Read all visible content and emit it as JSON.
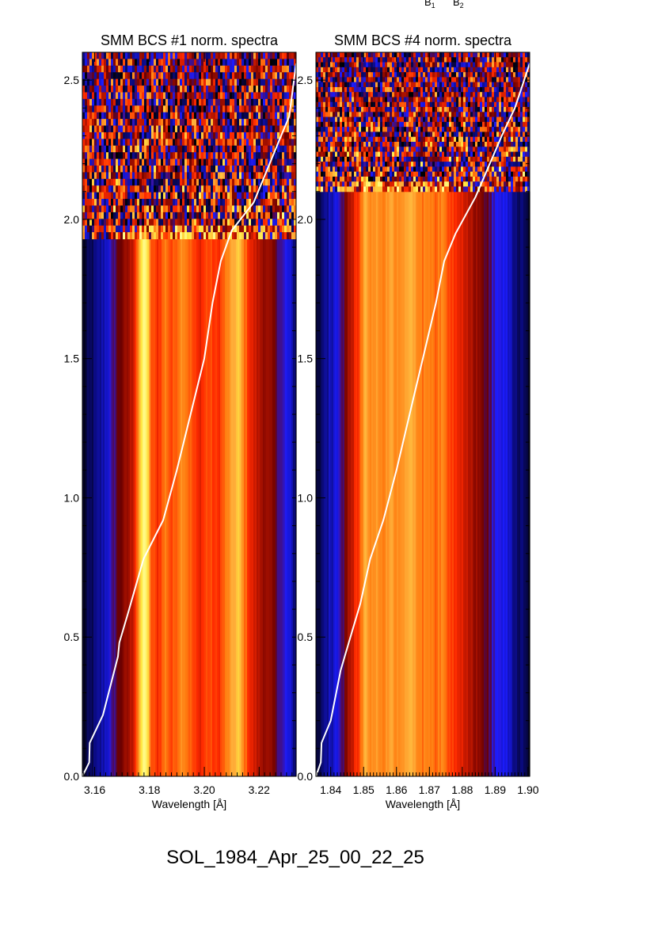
{
  "header": {
    "b1": "B",
    "b1_sub": "1",
    "b2": "B",
    "b2_sub": "2"
  },
  "footer": {
    "event_label": "SOL_1984_Apr_25_00_22_25"
  },
  "colors": {
    "scale": [
      "#000000",
      "#0a0a7a",
      "#1c1cff",
      "#6a0000",
      "#b41400",
      "#ff2a00",
      "#ff7d10",
      "#ffb03a",
      "#ffe640",
      "#ffff9a"
    ],
    "curve": "#ffffff",
    "axis": "#000000"
  },
  "chart_data": [
    {
      "type": "heatmap",
      "title": "SMM BCS #1 norm. spectra",
      "xlabel": "Wavelength [Å]",
      "ylabel": "",
      "xlim": [
        3.1555,
        3.2335
      ],
      "ylim": [
        0.0,
        2.6
      ],
      "x_ticks": [
        3.16,
        3.18,
        3.2,
        3.22
      ],
      "x_tick_labels": [
        "3.16",
        "3.18",
        "3.20",
        "3.22"
      ],
      "y_ticks": [
        0.0,
        0.5,
        1.0,
        1.5,
        2.0,
        2.5
      ],
      "y_tick_labels": [
        "0.0",
        "0.5",
        "1.0",
        "1.5",
        "2.0",
        "2.5"
      ],
      "noise_above_y": 1.93,
      "band_profile": [
        [
          3.1555,
          0.02
        ],
        [
          3.1575,
          0.06
        ],
        [
          3.16,
          0.1
        ],
        [
          3.1625,
          0.14
        ],
        [
          3.165,
          0.2
        ],
        [
          3.1675,
          0.3
        ],
        [
          3.17,
          0.36
        ],
        [
          3.172,
          0.4
        ],
        [
          3.174,
          0.48
        ],
        [
          3.176,
          0.7
        ],
        [
          3.1772,
          0.9
        ],
        [
          3.1782,
          1.0
        ],
        [
          3.1792,
          0.9
        ],
        [
          3.1805,
          0.62
        ],
        [
          3.183,
          0.55
        ],
        [
          3.186,
          0.68
        ],
        [
          3.188,
          0.58
        ],
        [
          3.192,
          0.72
        ],
        [
          3.195,
          0.62
        ],
        [
          3.198,
          0.52
        ],
        [
          3.201,
          0.6
        ],
        [
          3.205,
          0.55
        ],
        [
          3.208,
          0.66
        ],
        [
          3.211,
          0.78
        ],
        [
          3.2125,
          0.84
        ],
        [
          3.214,
          0.7
        ],
        [
          3.217,
          0.52
        ],
        [
          3.22,
          0.44
        ],
        [
          3.224,
          0.38
        ],
        [
          3.227,
          0.3
        ],
        [
          3.229,
          0.24
        ],
        [
          3.231,
          0.18
        ],
        [
          3.2335,
          0.1
        ]
      ],
      "curve": [
        [
          3.1555,
          0.0
        ],
        [
          3.158,
          0.05
        ],
        [
          3.1582,
          0.12
        ],
        [
          3.163,
          0.22
        ],
        [
          3.1685,
          0.43
        ],
        [
          3.169,
          0.48
        ],
        [
          3.172,
          0.58
        ],
        [
          3.1778,
          0.78
        ],
        [
          3.185,
          0.92
        ],
        [
          3.19,
          1.1
        ],
        [
          3.2,
          1.5
        ],
        [
          3.203,
          1.7
        ],
        [
          3.206,
          1.85
        ],
        [
          3.21,
          1.96
        ],
        [
          3.218,
          2.06
        ],
        [
          3.228,
          2.3
        ],
        [
          3.231,
          2.37
        ],
        [
          3.2335,
          2.56
        ]
      ]
    },
    {
      "type": "heatmap",
      "title": "SMM BCS #4 norm. spectra",
      "xlabel": "Wavelength [Å]",
      "ylabel": "",
      "xlim": [
        1.8355,
        1.9005
      ],
      "ylim": [
        0.0,
        2.6
      ],
      "x_ticks": [
        1.84,
        1.85,
        1.86,
        1.87,
        1.88,
        1.89,
        1.9
      ],
      "x_tick_labels": [
        "1.84",
        "1.85",
        "1.86",
        "1.87",
        "1.88",
        "1.89",
        "1.90"
      ],
      "y_ticks": [
        0.0,
        0.5,
        1.0,
        1.5,
        2.0,
        2.5
      ],
      "y_tick_labels": [
        "0.0",
        "0.5",
        "1.0",
        "1.5",
        "2.0",
        "2.5"
      ],
      "noise_above_y": 2.1,
      "band_profile": [
        [
          1.8355,
          0.02
        ],
        [
          1.8375,
          0.12
        ],
        [
          1.84,
          0.16
        ],
        [
          1.842,
          0.22
        ],
        [
          1.844,
          0.32
        ],
        [
          1.846,
          0.45
        ],
        [
          1.848,
          0.55
        ],
        [
          1.8495,
          0.66
        ],
        [
          1.8505,
          0.8
        ],
        [
          1.852,
          0.7
        ],
        [
          1.854,
          0.72
        ],
        [
          1.856,
          0.68
        ],
        [
          1.858,
          0.76
        ],
        [
          1.86,
          0.7
        ],
        [
          1.862,
          0.74
        ],
        [
          1.864,
          0.78
        ],
        [
          1.866,
          0.72
        ],
        [
          1.868,
          0.66
        ],
        [
          1.87,
          0.7
        ],
        [
          1.872,
          0.64
        ],
        [
          1.874,
          0.68
        ],
        [
          1.876,
          0.6
        ],
        [
          1.878,
          0.56
        ],
        [
          1.88,
          0.52
        ],
        [
          1.882,
          0.46
        ],
        [
          1.884,
          0.4
        ],
        [
          1.886,
          0.36
        ],
        [
          1.888,
          0.3
        ],
        [
          1.89,
          0.24
        ],
        [
          1.893,
          0.2
        ],
        [
          1.895,
          0.14
        ],
        [
          1.8975,
          0.1
        ],
        [
          1.9005,
          0.04
        ]
      ],
      "curve": [
        [
          1.8355,
          0.0
        ],
        [
          1.837,
          0.05
        ],
        [
          1.8372,
          0.12
        ],
        [
          1.84,
          0.2
        ],
        [
          1.843,
          0.38
        ],
        [
          1.846,
          0.5
        ],
        [
          1.849,
          0.62
        ],
        [
          1.852,
          0.78
        ],
        [
          1.856,
          0.92
        ],
        [
          1.86,
          1.1
        ],
        [
          1.865,
          1.35
        ],
        [
          1.869,
          1.55
        ],
        [
          1.872,
          1.7
        ],
        [
          1.8745,
          1.85
        ],
        [
          1.878,
          1.95
        ],
        [
          1.884,
          2.08
        ],
        [
          1.892,
          2.3
        ],
        [
          1.896,
          2.4
        ],
        [
          1.9005,
          2.56
        ]
      ]
    }
  ]
}
